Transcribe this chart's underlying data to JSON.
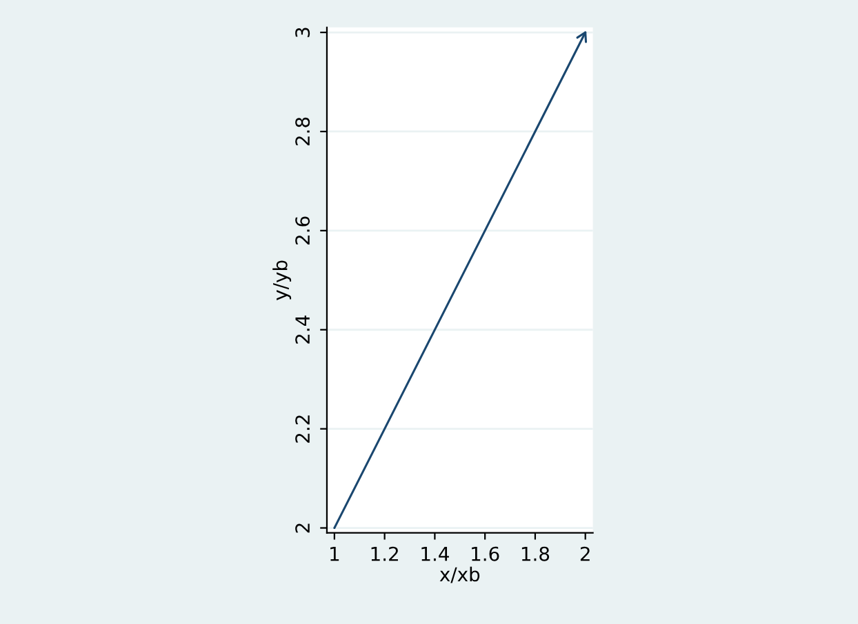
{
  "chart_data": {
    "type": "line",
    "xlabel": "x/xb",
    "ylabel": "y/yb",
    "x": [
      1,
      2
    ],
    "series": [
      {
        "color": "#1a476f",
        "values": [
          2,
          3
        ]
      }
    ],
    "xlim": [
      0.97,
      2.03
    ],
    "ylim": [
      1.99,
      3.01
    ],
    "xticks": [
      1,
      1.2,
      1.4,
      1.6,
      1.8,
      2
    ],
    "yticks": [
      2,
      2.2,
      2.4,
      2.6,
      2.8,
      3
    ],
    "grid": "y",
    "marker": "none",
    "line_style": "solid"
  }
}
